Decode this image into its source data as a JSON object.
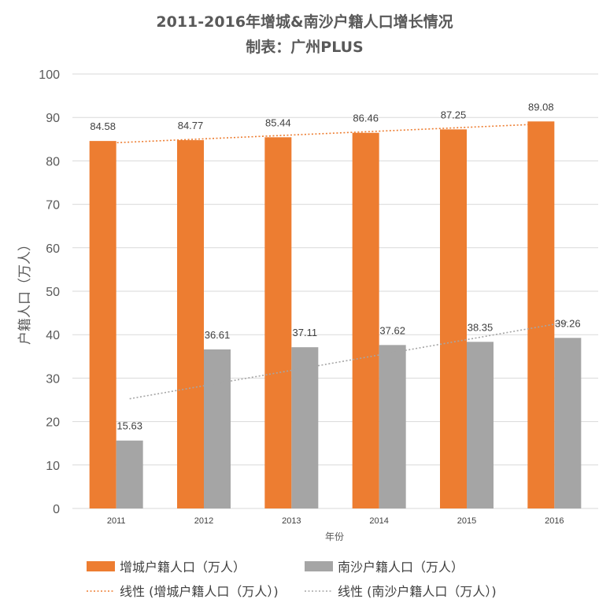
{
  "chart_data": {
    "type": "bar",
    "title": "2011-2016年增城&南沙户籍人口增长情况",
    "subtitle": "制表：广州PLUS",
    "xlabel": "年份",
    "ylabel": "户籍人口（万人）",
    "ylim": [
      0,
      100
    ],
    "yticks": [
      0,
      10,
      20,
      30,
      40,
      50,
      60,
      70,
      80,
      90,
      100
    ],
    "grid": true,
    "legend_position": "bottom",
    "categories": [
      "2011",
      "2012",
      "2013",
      "2014",
      "2015",
      "2016"
    ],
    "series": [
      {
        "name": "增城户籍人口（万人）",
        "color": "#ED7D31",
        "values": [
          84.58,
          84.77,
          85.44,
          86.46,
          87.25,
          89.08
        ]
      },
      {
        "name": "南沙户籍人口（万人）",
        "color": "#A5A5A5",
        "values": [
          15.63,
          36.61,
          37.11,
          37.62,
          38.35,
          39.26
        ]
      }
    ],
    "trendlines": [
      {
        "name": "线性 (增城户籍人口（万人）)",
        "color": "#ED7D31",
        "style": "dotted",
        "of_series": 0
      },
      {
        "name": "线性 (南沙户籍人口（万人）)",
        "color": "#A5A5A5",
        "style": "dotted",
        "of_series": 1
      }
    ]
  }
}
